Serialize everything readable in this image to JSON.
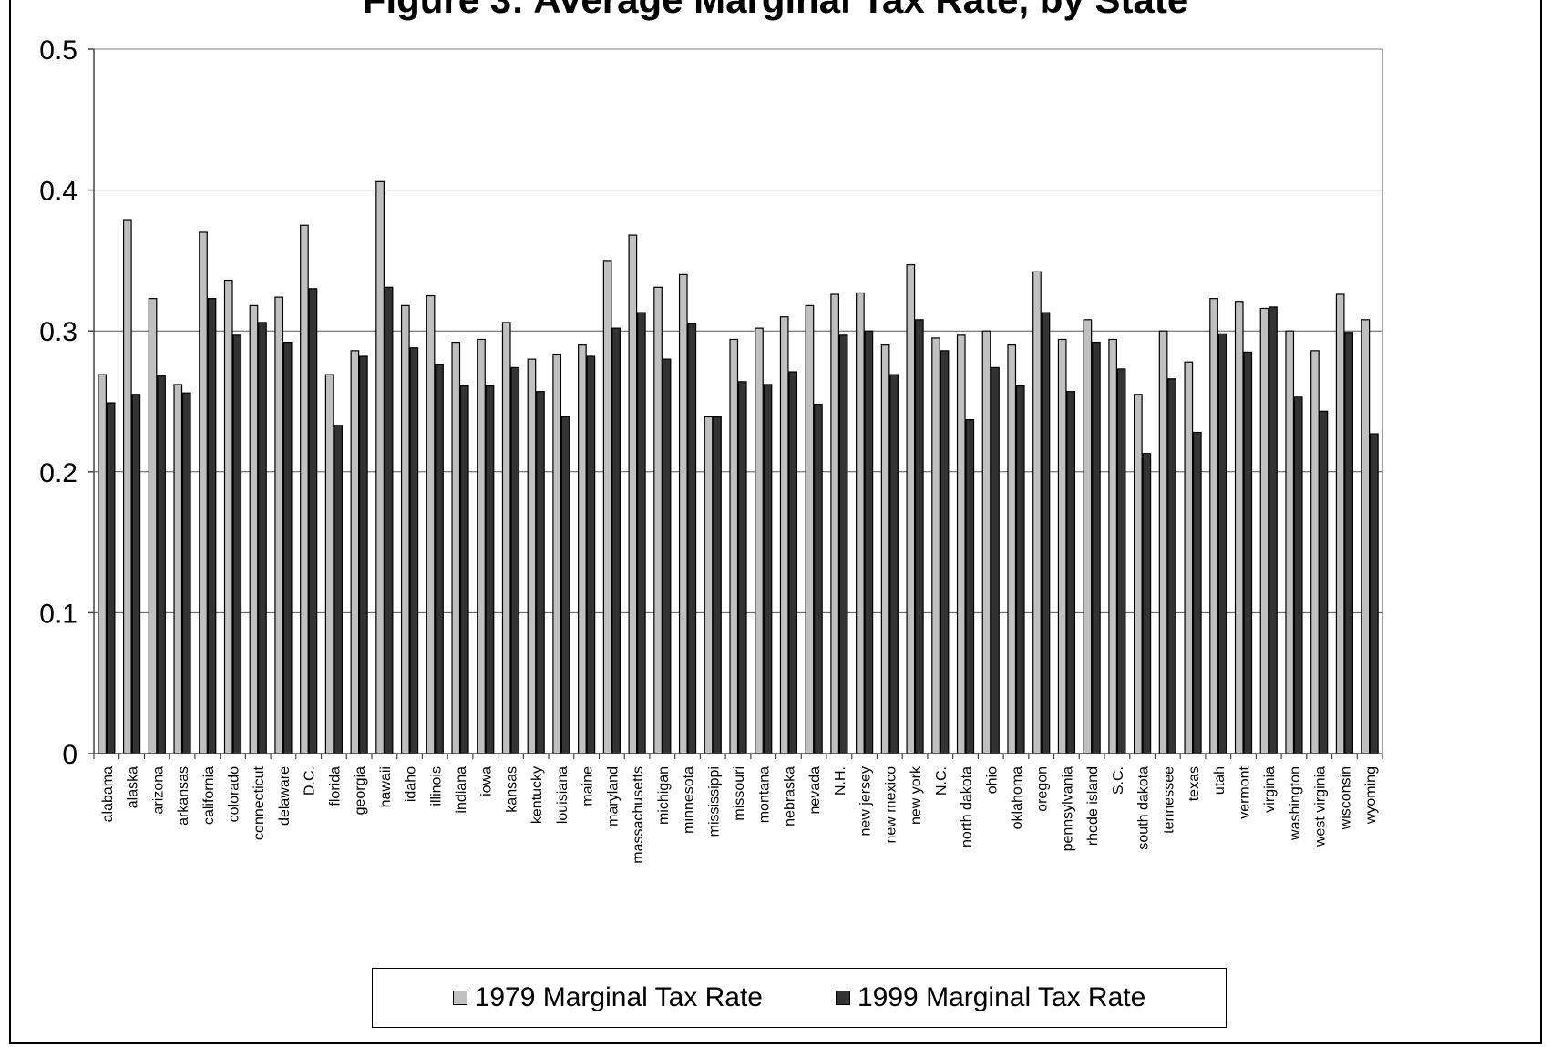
{
  "chart_data": {
    "type": "bar",
    "title": "Figure 3: Average Marginal Tax Rate, by State",
    "xlabel": "",
    "ylabel": "",
    "ylim": [
      0,
      0.5
    ],
    "yticks": [
      0,
      0.1,
      0.2,
      0.3,
      0.4,
      0.5
    ],
    "ytick_labels": [
      "0",
      "0.1",
      "0.2",
      "0.3",
      "0.4",
      "0.5"
    ],
    "grid": true,
    "legend_position": "bottom",
    "categories": [
      "alabama",
      "alaska",
      "arizona",
      "arkansas",
      "california",
      "colorado",
      "connecticut",
      "delaware",
      "D.C.",
      "florida",
      "georgia",
      "hawaii",
      "idaho",
      "illinois",
      "indiana",
      "iowa",
      "kansas",
      "kentucky",
      "louisiana",
      "maine",
      "maryland",
      "massachusetts",
      "michigan",
      "minnesota",
      "mississippi",
      "missouri",
      "montana",
      "nebraska",
      "nevada",
      "N.H.",
      "new jersey",
      "new mexico",
      "new york",
      "N.C.",
      "north dakota",
      "ohio",
      "oklahoma",
      "oregon",
      "pennsylvania",
      "rhode island",
      "S.C.",
      "south dakota",
      "tennessee",
      "texas",
      "utah",
      "vermont",
      "virginia",
      "washington",
      "west virginia",
      "wisconsin",
      "wyoming"
    ],
    "series": [
      {
        "name": "1979 Marginal Tax Rate",
        "color": "#c0c0c0",
        "values": [
          0.269,
          0.379,
          0.323,
          0.262,
          0.37,
          0.336,
          0.318,
          0.324,
          0.375,
          0.269,
          0.286,
          0.406,
          0.318,
          0.325,
          0.292,
          0.294,
          0.306,
          0.28,
          0.283,
          0.29,
          0.35,
          0.368,
          0.331,
          0.34,
          0.239,
          0.294,
          0.302,
          0.31,
          0.318,
          0.326,
          0.327,
          0.29,
          0.347,
          0.295,
          0.297,
          0.3,
          0.29,
          0.342,
          0.294,
          0.308,
          0.294,
          0.255,
          0.3,
          0.278,
          0.323,
          0.321,
          0.316,
          0.3,
          0.286,
          0.326,
          0.308
        ]
      },
      {
        "name": "1999 Marginal Tax Rate",
        "color": "#333333",
        "values": [
          0.249,
          0.255,
          0.268,
          0.256,
          0.323,
          0.297,
          0.306,
          0.292,
          0.33,
          0.233,
          0.282,
          0.331,
          0.288,
          0.276,
          0.261,
          0.261,
          0.274,
          0.257,
          0.239,
          0.282,
          0.302,
          0.313,
          0.28,
          0.305,
          0.239,
          0.264,
          0.262,
          0.271,
          0.248,
          0.297,
          0.3,
          0.269,
          0.308,
          0.286,
          0.237,
          0.274,
          0.261,
          0.313,
          0.257,
          0.292,
          0.273,
          0.213,
          0.266,
          0.228,
          0.298,
          0.285,
          0.317,
          0.253,
          0.243,
          0.299,
          0.227
        ]
      }
    ]
  }
}
